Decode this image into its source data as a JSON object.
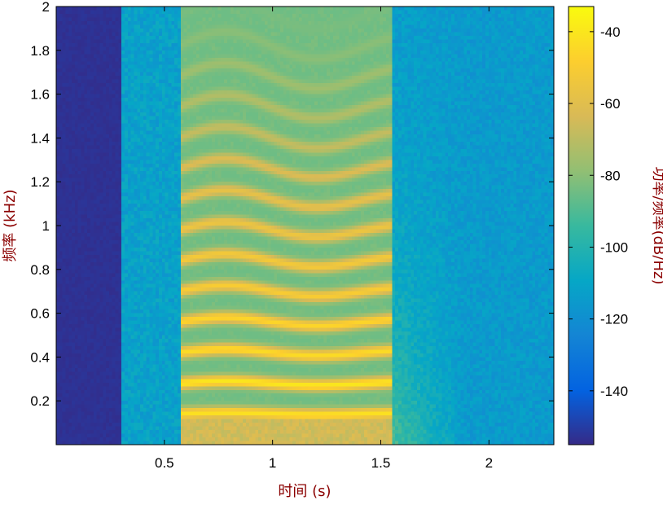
{
  "chart_data": {
    "type": "heatmap",
    "title": "",
    "xlabel": "时间 (s)",
    "ylabel": "频率 (kHz)",
    "colorbar_label": "功率/频率(dB/Hz)",
    "xlim": [
      0,
      2.3
    ],
    "ylim": [
      0,
      2
    ],
    "clim": [
      -155,
      -33
    ],
    "x_ticks": [
      {
        "value": 0.5,
        "label": "0.5"
      },
      {
        "value": 1,
        "label": "1"
      },
      {
        "value": 1.5,
        "label": "1.5"
      },
      {
        "value": 2,
        "label": "2"
      }
    ],
    "y_ticks": [
      {
        "value": 0.2,
        "label": "0.2"
      },
      {
        "value": 0.4,
        "label": "0.4"
      },
      {
        "value": 0.6,
        "label": "0.6"
      },
      {
        "value": 0.8,
        "label": "0.8"
      },
      {
        "value": 1,
        "label": "1"
      },
      {
        "value": 1.2,
        "label": "1.2"
      },
      {
        "value": 1.4,
        "label": "1.4"
      },
      {
        "value": 1.6,
        "label": "1.6"
      },
      {
        "value": 1.8,
        "label": "1.8"
      },
      {
        "value": 2,
        "label": "2"
      }
    ],
    "colorbar_ticks": [
      {
        "value": -40,
        "label": "-40"
      },
      {
        "value": -60,
        "label": "-60"
      },
      {
        "value": -80,
        "label": "-80"
      },
      {
        "value": -100,
        "label": "-100"
      },
      {
        "value": -120,
        "label": "-120"
      },
      {
        "value": -140,
        "label": "-140"
      }
    ],
    "colormap": "parula",
    "colormap_stops": [
      "#352a87",
      "#0363e1",
      "#1485d4",
      "#06a7c6",
      "#38b99e",
      "#92bf73",
      "#d9ba56",
      "#fcce2e",
      "#f9fb0e"
    ],
    "regions": [
      {
        "name": "silence",
        "t_start": 0,
        "t_end": 0.3,
        "level_db": -153
      },
      {
        "name": "background",
        "t_start": 0.3,
        "t_end": 0.57,
        "level_db": -112
      },
      {
        "name": "voiced",
        "t_start": 0.57,
        "t_end": 1.55,
        "level_db": -85
      },
      {
        "name": "decay",
        "t_start": 1.55,
        "t_end": 2.3,
        "level_db": -115
      }
    ],
    "harmonics_khz": [
      0.14,
      0.28,
      0.42,
      0.56,
      0.7,
      0.84,
      0.98,
      1.12,
      1.26,
      1.4,
      1.54,
      1.68,
      1.82,
      1.96
    ],
    "harmonic_peak_db": [
      -42,
      -40,
      -44,
      -46,
      -50,
      -52,
      -55,
      -58,
      -62,
      -68,
      -72,
      -76,
      -80,
      -83
    ]
  }
}
